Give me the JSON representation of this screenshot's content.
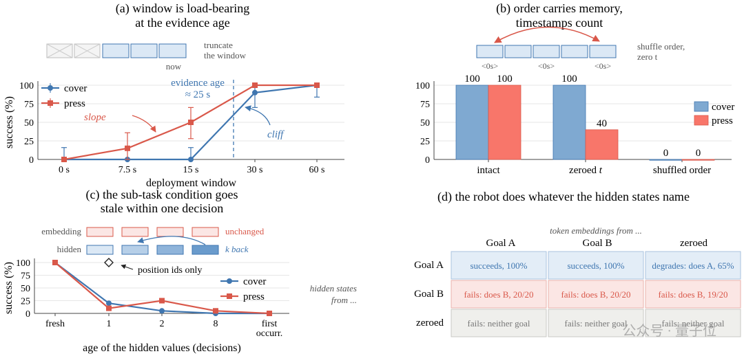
{
  "colors": {
    "cover": "#3f76b0",
    "press": "#d9584a",
    "bar_cover": "#7fa9d1",
    "bar_press": "#f8766a",
    "grid": "#e6e6e6",
    "axis": "#444444",
    "cell_blue": "#e3edf7",
    "cell_red": "#fbe6e4",
    "cell_gray": "#efefec"
  },
  "panel_a": {
    "title_line1": "(a) window is load-bearing",
    "title_line2": "at the evidence age",
    "truncate_line1": "truncate",
    "truncate_line2": "the window",
    "now": "now",
    "evidence_line1": "evidence age",
    "evidence_line2": "≈ 25 s",
    "slope": "slope",
    "cliff": "cliff"
  },
  "panel_b": {
    "title_line1": "(b) order carries memory,",
    "title_line2": "timestamps count",
    "shuffle_line1": "shuffle order,",
    "shuffle_line2": "zero t",
    "zero_ts_label": "<0s>"
  },
  "panel_c": {
    "title_line1": "(c) the sub-task condition goes",
    "title_line2": "stale within one decision",
    "embedding": "embedding",
    "hidden": "hidden",
    "unchanged": "unchanged",
    "k_back": "k back",
    "position_ids": "position ids only"
  },
  "panel_d": {
    "title": "(d) the robot does whatever the hidden states name",
    "header_caption": "token embeddings from ...",
    "side_caption_line1": "hidden states",
    "side_caption_line2": "from ...",
    "col_headers": [
      "Goal A",
      "Goal B",
      "zeroed"
    ],
    "row_headers": [
      "Goal A",
      "Goal B",
      "zeroed"
    ],
    "cells": [
      [
        {
          "text": "succeeds, 100%",
          "tone": "blue"
        },
        {
          "text": "succeeds, 100%",
          "tone": "blue"
        },
        {
          "text": "degrades: does A, 65%",
          "tone": "blue"
        }
      ],
      [
        {
          "text": "fails: does B, 20/20",
          "tone": "red"
        },
        {
          "text": "fails: does B, 20/20",
          "tone": "red"
        },
        {
          "text": "fails: does B, 19/20",
          "tone": "red"
        }
      ],
      [
        {
          "text": "fails: neither goal",
          "tone": "gray"
        },
        {
          "text": "fails: neither goal",
          "tone": "gray"
        },
        {
          "text": "fails: neither goal",
          "tone": "gray"
        }
      ]
    ]
  },
  "watermark": "公众号 · 量子位",
  "chart_data": [
    {
      "type": "line",
      "xlabel": "deployment window",
      "ylabel": "success (%)",
      "categories": [
        "0 s",
        "7.5 s",
        "15 s",
        "30 s",
        "60 s"
      ],
      "yticks": [
        0,
        25,
        50,
        75,
        100
      ],
      "ylim": [
        0,
        100
      ],
      "series": [
        {
          "name": "cover",
          "values": [
            0,
            0,
            0,
            90,
            100
          ],
          "err_low": [
            0,
            0,
            0,
            20,
            16
          ],
          "err_high": [
            16,
            0,
            16,
            10,
            0
          ]
        },
        {
          "name": "press",
          "values": [
            0,
            15,
            50,
            100,
            100
          ],
          "err_low": [
            0,
            15,
            22,
            0,
            0
          ],
          "err_high": [
            0,
            21,
            20,
            0,
            0
          ]
        }
      ],
      "annotation_x_value": 25
    },
    {
      "type": "bar",
      "categories": [
        "intact",
        "zeroed t",
        "shuffled order"
      ],
      "yticks": [
        0,
        25,
        50,
        75,
        100
      ],
      "ylim": [
        0,
        100
      ],
      "series": [
        {
          "name": "cover",
          "values": [
            100,
            100,
            0
          ]
        },
        {
          "name": "press",
          "values": [
            100,
            40,
            0
          ]
        }
      ]
    },
    {
      "type": "line",
      "xlabel": "age of the hidden values (decisions)",
      "ylabel": "success (%)",
      "categories": [
        "fresh",
        "1",
        "2",
        "8",
        "first occurr."
      ],
      "yticks": [
        0,
        25,
        50,
        75,
        100
      ],
      "ylim": [
        0,
        100
      ],
      "series": [
        {
          "name": "cover",
          "values": [
            100,
            20,
            5,
            0,
            0
          ]
        },
        {
          "name": "press",
          "values": [
            100,
            10,
            25,
            5,
            0
          ]
        }
      ],
      "extra_point": {
        "label": "position ids only",
        "x_index": 1,
        "value": 100
      }
    }
  ]
}
